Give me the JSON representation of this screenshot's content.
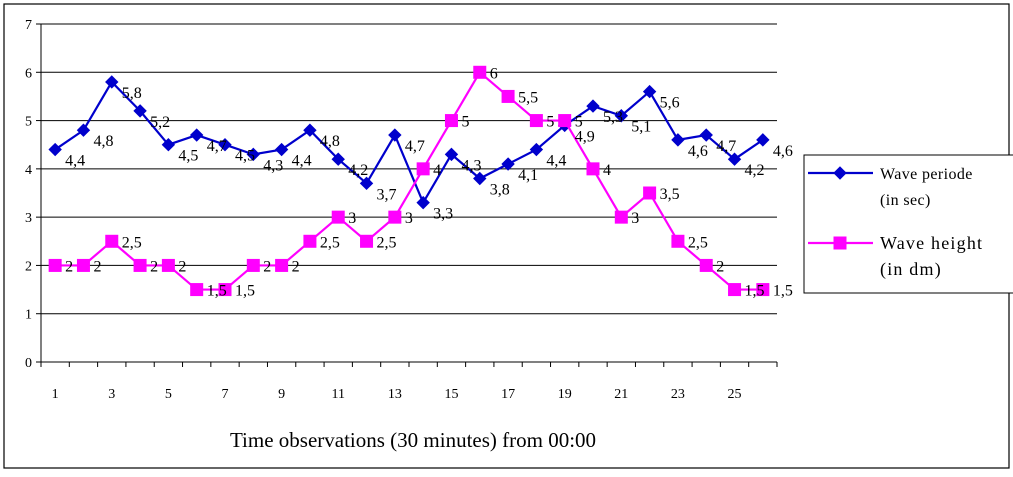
{
  "chart_data": {
    "type": "line",
    "title": "",
    "xlabel": "Time observations (30 minutes) from 00:00",
    "ylabel": "",
    "ylim": [
      0,
      7
    ],
    "yticks": [
      "0",
      "1",
      "2",
      "3",
      "4",
      "5",
      "6",
      "7"
    ],
    "x": [
      1,
      2,
      3,
      4,
      5,
      6,
      7,
      8,
      9,
      10,
      11,
      12,
      13,
      14,
      15,
      16,
      17,
      18,
      19,
      20,
      21,
      22,
      23,
      24,
      25,
      26
    ],
    "xticks": [
      "1",
      "3",
      "5",
      "7",
      "9",
      "11",
      "13",
      "15",
      "17",
      "19",
      "21",
      "23",
      "25"
    ],
    "grid": "horizontal",
    "legend_position": "right",
    "series": [
      {
        "name": "Wave periode (in sec)",
        "legend_lines": [
          "Wave periode",
          "(in sec)"
        ],
        "color": "#0000cc",
        "marker": "diamond",
        "values": [
          4.4,
          4.8,
          5.8,
          5.2,
          4.5,
          4.7,
          4.5,
          4.3,
          4.4,
          4.8,
          4.2,
          3.7,
          4.7,
          3.3,
          4.3,
          3.8,
          4.1,
          4.4,
          4.9,
          5.3,
          5.1,
          5.6,
          4.6,
          4.7,
          4.2,
          4.6
        ],
        "labels": [
          "4,4",
          "4,8",
          "5,8",
          "5,2",
          "4,5",
          "4,7",
          "4,5",
          "4,3",
          "4,4",
          "4,8",
          "4,2",
          "3,7",
          "4,7",
          "3,3",
          "4,3",
          "3,8",
          "4,1",
          "4,4",
          "4,9",
          "5,3",
          "5,1",
          "5,6",
          "4,6",
          "4,7",
          "4,2",
          "4,6"
        ]
      },
      {
        "name": "Wave height (in dm)",
        "legend_lines": [
          "Wave height",
          "(in dm)"
        ],
        "color": "#ff00ff",
        "marker": "square",
        "values": [
          2,
          2,
          2.5,
          2,
          2,
          1.5,
          1.5,
          2,
          2,
          2.5,
          3,
          2.5,
          3,
          4,
          5,
          6,
          5.5,
          5,
          5,
          4,
          3,
          3.5,
          2.5,
          2,
          1.5,
          1.5
        ],
        "labels": [
          "2",
          "2",
          "2,5",
          "2",
          "2",
          "1,5",
          "1,5",
          "2",
          "2",
          "2,5",
          "3",
          "2,5",
          "3",
          "4",
          "5",
          "6",
          "5,5",
          "5",
          "5",
          "4",
          "3",
          "3,5",
          "2,5",
          "2",
          "1,5",
          "1,5"
        ]
      }
    ]
  }
}
